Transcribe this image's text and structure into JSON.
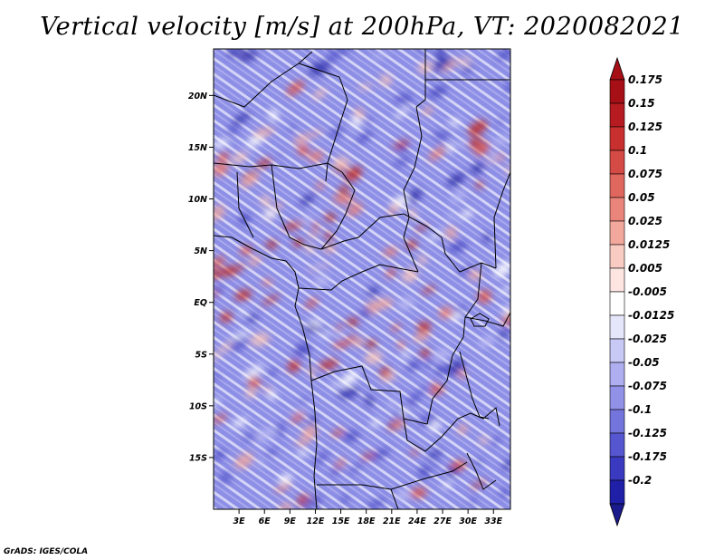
{
  "title": "Vertical velocity [m/s] at 200hPa, VT: 2020082021",
  "footer": "GrADS: IGES/COLA",
  "map": {
    "lon_range": [
      0,
      35
    ],
    "lat_range": [
      -20,
      24.5
    ],
    "lat_ticks": [
      {
        "value": 20,
        "label": "20N"
      },
      {
        "value": 15,
        "label": "15N"
      },
      {
        "value": 10,
        "label": "10N"
      },
      {
        "value": 5,
        "label": "5N"
      },
      {
        "value": 0,
        "label": "EQ"
      },
      {
        "value": -5,
        "label": "5S"
      },
      {
        "value": -10,
        "label": "10S"
      },
      {
        "value": -15,
        "label": "15S"
      }
    ],
    "lon_ticks": [
      {
        "value": 3,
        "label": "3E"
      },
      {
        "value": 6,
        "label": "6E"
      },
      {
        "value": 9,
        "label": "9E"
      },
      {
        "value": 12,
        "label": "12E"
      },
      {
        "value": 15,
        "label": "15E"
      },
      {
        "value": 18,
        "label": "18E"
      },
      {
        "value": 21,
        "label": "21E"
      },
      {
        "value": 24,
        "label": "24E"
      },
      {
        "value": 27,
        "label": "27E"
      },
      {
        "value": 30,
        "label": "30E"
      },
      {
        "value": 33,
        "label": "33E"
      }
    ]
  },
  "colorbar": {
    "levels": [
      {
        "label": "0.175",
        "color": "#a50f15"
      },
      {
        "label": "0.15",
        "color": "#b51b20"
      },
      {
        "label": "0.125",
        "color": "#c8302f"
      },
      {
        "label": "0.1",
        "color": "#d44a44"
      },
      {
        "label": "0.075",
        "color": "#e0675e"
      },
      {
        "label": "0.05",
        "color": "#ea857b"
      },
      {
        "label": "0.025",
        "color": "#f3a89e"
      },
      {
        "label": "0.0125",
        "color": "#f8cbc3"
      },
      {
        "label": "0.005",
        "color": "#fde6e2"
      },
      {
        "label": "-0.005",
        "color": "#ffffff"
      },
      {
        "label": "-0.0125",
        "color": "#e6e6fb"
      },
      {
        "label": "-0.025",
        "color": "#c9c9f5"
      },
      {
        "label": "-0.05",
        "color": "#aeaef0"
      },
      {
        "label": "-0.075",
        "color": "#9191e8"
      },
      {
        "label": "-0.1",
        "color": "#7474dd"
      },
      {
        "label": "-0.125",
        "color": "#5656d0"
      },
      {
        "label": "-0.175",
        "color": "#3a3ac0"
      },
      {
        "label": "-0.2",
        "color": "#1f1fa8"
      }
    ],
    "bottom_color": "#1a1a8c",
    "top_color": "#a50f15"
  }
}
